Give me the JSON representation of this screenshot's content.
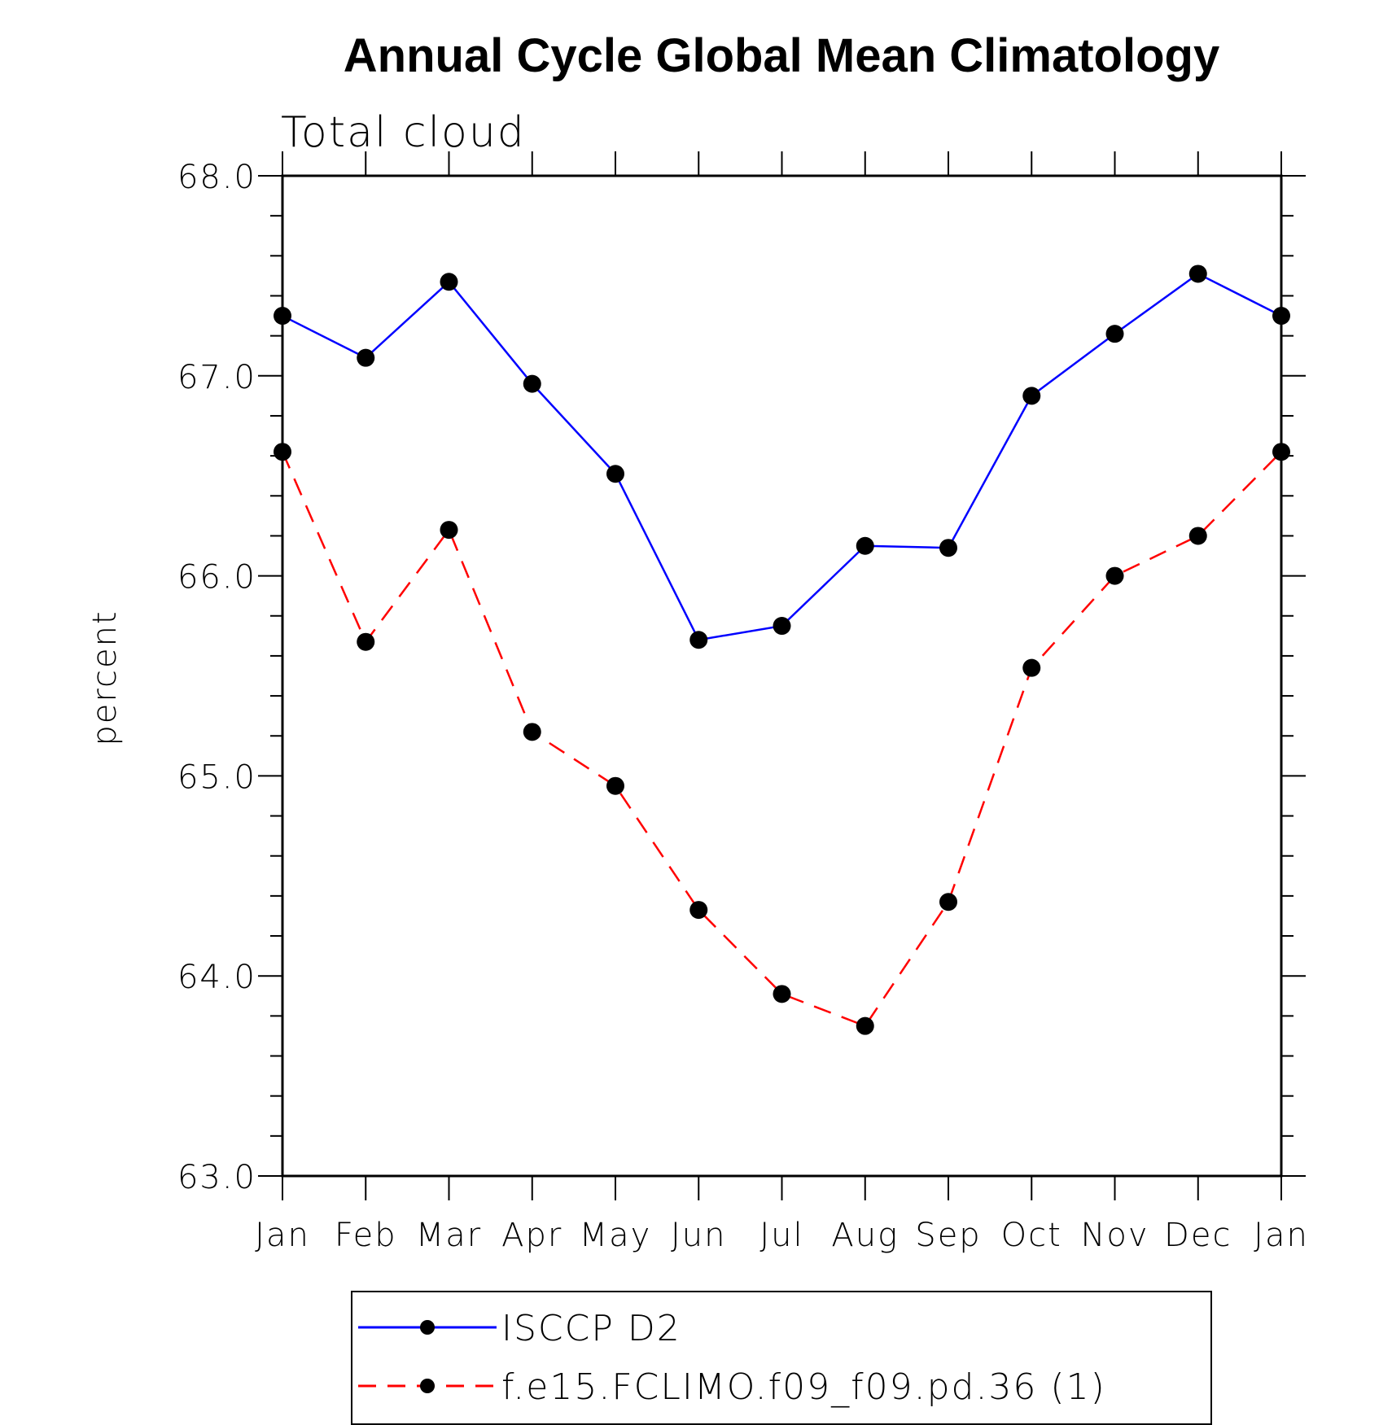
{
  "chart_data": {
    "type": "line",
    "title": "Annual Cycle Global Mean Climatology",
    "subtitle": "Total cloud",
    "xlabel": "",
    "ylabel": "percent",
    "categories": [
      "Jan",
      "Feb",
      "Mar",
      "Apr",
      "May",
      "Jun",
      "Jul",
      "Aug",
      "Sep",
      "Oct",
      "Nov",
      "Dec",
      "Jan"
    ],
    "ylim": [
      63.0,
      68.0
    ],
    "yticks": [
      "63.0",
      "64.0",
      "65.0",
      "66.0",
      "67.0",
      "68.0"
    ],
    "y_minor_step": 0.2,
    "series": [
      {
        "name": "ISCCP D2",
        "color": "#0000ff",
        "dash": "solid",
        "marker": "filled-circle",
        "values": [
          67.3,
          67.09,
          67.47,
          66.96,
          66.51,
          65.68,
          65.75,
          66.15,
          66.14,
          66.9,
          67.21,
          67.51,
          67.3
        ]
      },
      {
        "name": "f.e15.FCLIMO.f09_f09.pd.36 (1)",
        "color": "#ff0000",
        "dash": "dashed",
        "marker": "filled-circle",
        "values": [
          66.62,
          65.67,
          66.23,
          65.22,
          64.95,
          64.33,
          63.91,
          63.75,
          64.37,
          65.54,
          66.0,
          66.2,
          66.62
        ]
      }
    ],
    "legend_position": "bottom-center"
  }
}
